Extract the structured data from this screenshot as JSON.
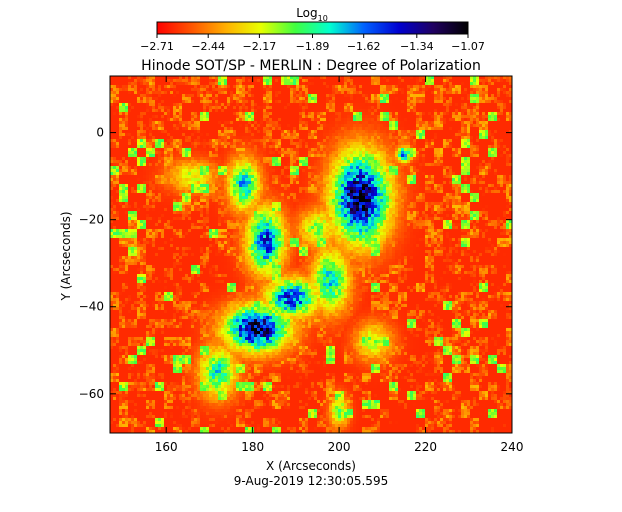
{
  "chart_data": {
    "type": "heatmap",
    "title": "Hinode SOT/SP - MERLIN : Degree of Polarization",
    "subtitle": "9-Aug-2019 12:30:05.595",
    "xlabel": "X (Arcseconds)",
    "ylabel": "Y (Arcseconds)",
    "xlim": [
      147,
      240
    ],
    "ylim": [
      -69,
      13
    ],
    "x_ticks": [
      160,
      180,
      200,
      220,
      240
    ],
    "x_tick_labels": [
      "160",
      "180",
      "200",
      "220",
      "240"
    ],
    "y_ticks": [
      0,
      -20,
      -40,
      -60
    ],
    "y_tick_labels": [
      "0",
      "−20",
      "−40",
      "−60"
    ],
    "colorbar": {
      "label_base": "Log",
      "label_subscript": "10",
      "range": [
        -2.71,
        -1.07
      ],
      "ticks": [
        -2.71,
        -2.44,
        -2.17,
        -1.89,
        -1.62,
        -1.34,
        -1.07
      ],
      "tick_labels": [
        "−2.71",
        "−2.44",
        "−2.17",
        "−1.89",
        "−1.62",
        "−1.34",
        "−1.07"
      ],
      "colormap": [
        "#ff0000",
        "#ff5500",
        "#ffb000",
        "#e8ff00",
        "#40ff40",
        "#00ffd0",
        "#0060ff",
        "#0000d0",
        "#200060",
        "#000000"
      ]
    },
    "background_level": -2.62,
    "active_regions": [
      {
        "x": 205,
        "y": -15,
        "sx": 4.5,
        "sy": 7,
        "peak": -1.22
      },
      {
        "x": 181,
        "y": -45,
        "sx": 5,
        "sy": 3.5,
        "peak": -1.25
      },
      {
        "x": 189,
        "y": -38,
        "sx": 4,
        "sy": 3,
        "peak": -1.5
      },
      {
        "x": 183,
        "y": -25,
        "sx": 3,
        "sy": 5,
        "peak": -1.55
      },
      {
        "x": 178,
        "y": -12,
        "sx": 2.5,
        "sy": 4,
        "peak": -1.75
      },
      {
        "x": 198,
        "y": -34,
        "sx": 3,
        "sy": 5,
        "peak": -1.8
      },
      {
        "x": 172,
        "y": -55,
        "sx": 3,
        "sy": 4,
        "peak": -1.85
      },
      {
        "x": 215,
        "y": -5,
        "sx": 1.2,
        "sy": 1.2,
        "peak": -1.6
      },
      {
        "x": 200,
        "y": -64,
        "sx": 1.5,
        "sy": 2.5,
        "peak": -2.0
      },
      {
        "x": 195,
        "y": -22,
        "sx": 3,
        "sy": 3,
        "peak": -2.05
      },
      {
        "x": 166,
        "y": -10,
        "sx": 4,
        "sy": 2.5,
        "peak": -2.15
      },
      {
        "x": 208,
        "y": -48,
        "sx": 3,
        "sy": 3,
        "peak": -2.1
      }
    ]
  }
}
